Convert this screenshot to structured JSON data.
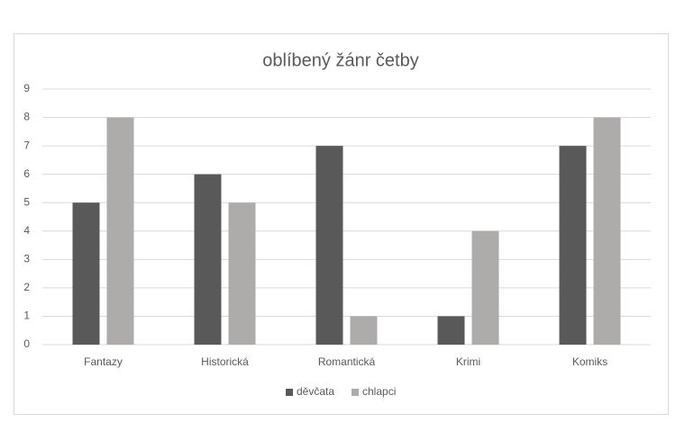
{
  "chart_data": {
    "type": "bar",
    "title": "oblíbený žánr četby",
    "categories": [
      "Fantazy",
      "Historická",
      "Romantická",
      "Krimi",
      "Komiks"
    ],
    "series": [
      {
        "name": "děvčata",
        "color": "#595959",
        "values": [
          5,
          6,
          7,
          1,
          7
        ]
      },
      {
        "name": "chlapci",
        "color": "#aeabab",
        "values": [
          8,
          5,
          1,
          4,
          8
        ]
      }
    ],
    "ylim": [
      0,
      9
    ],
    "yticks": [
      0,
      1,
      2,
      3,
      4,
      5,
      6,
      7,
      8,
      9
    ],
    "grid": true,
    "legend": "bottom"
  }
}
